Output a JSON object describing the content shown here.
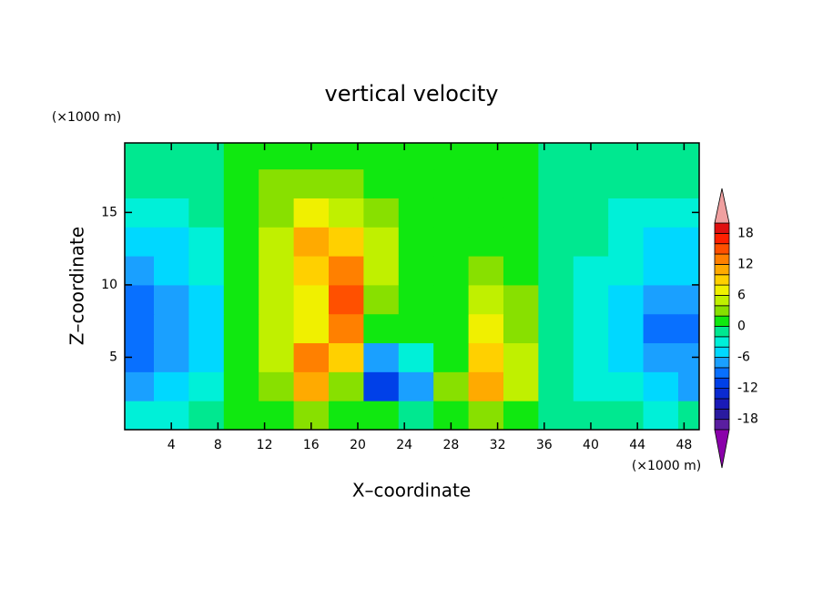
{
  "chart_data": {
    "type": "contour",
    "title": "vertical velocity",
    "x_label": "X–coordinate",
    "y_label": "Z–coordinate",
    "x_unit": "(×1000 m)",
    "y_unit": "(×1000 m)",
    "xlim": [
      0,
      49.3
    ],
    "ylim": [
      0,
      19.8
    ],
    "xticks": [
      4,
      8,
      12,
      16,
      20,
      24,
      28,
      32,
      36,
      40,
      44,
      48
    ],
    "yticks": [
      5,
      10,
      15
    ],
    "x": [
      1,
      4,
      7,
      10,
      13,
      16,
      19,
      22,
      25,
      28,
      31,
      34,
      37,
      40,
      43,
      46,
      49
    ],
    "y": [
      1,
      3,
      5,
      7,
      9,
      11,
      13,
      15,
      17,
      19
    ],
    "z": [
      [
        -4,
        -4,
        -2,
        1,
        1,
        3,
        1,
        0,
        -2,
        1,
        3,
        1,
        -1,
        -2,
        -2,
        -4,
        -2
      ],
      [
        -8,
        -6,
        -4,
        0.5,
        3,
        11,
        3,
        -12,
        -7,
        3,
        11,
        4,
        -1,
        -4,
        -4,
        -6,
        -8
      ],
      [
        -10,
        -8,
        -5,
        1,
        4,
        13,
        9,
        -8,
        -3,
        1,
        9,
        4,
        -1,
        -4,
        -6,
        -7,
        -8
      ],
      [
        -10,
        -8,
        -6,
        1,
        5,
        7,
        12,
        1,
        1,
        1,
        7,
        3,
        -1,
        -4,
        -6,
        -9,
        -10
      ],
      [
        -10,
        -8,
        -5,
        1,
        5,
        7,
        15,
        3,
        1,
        1,
        5,
        3,
        -1,
        -3,
        -6,
        -8,
        -8
      ],
      [
        -8,
        -6,
        -4,
        1,
        5,
        9,
        13,
        4,
        1,
        1,
        3,
        1,
        -1,
        -3,
        -4,
        -6,
        -6
      ],
      [
        -6,
        -5,
        -3,
        0.5,
        4,
        11,
        9,
        5,
        1,
        1,
        1,
        1,
        -1,
        -2,
        -3,
        -5,
        -6
      ],
      [
        -4,
        -4,
        -2,
        1,
        3,
        7,
        5,
        3,
        1,
        1,
        1,
        1,
        -1,
        -2,
        -3,
        -4,
        -4
      ],
      [
        -2,
        -2,
        -1,
        1,
        3,
        3,
        3,
        1,
        1,
        1,
        1,
        1,
        -1,
        -2,
        -2,
        -2,
        -2
      ],
      [
        -1,
        -1,
        -1,
        1,
        1,
        1,
        1,
        1,
        1,
        1,
        1,
        1,
        -1,
        -1,
        -1,
        -1,
        -1
      ]
    ],
    "levels": [
      -20,
      -18,
      -16,
      -14,
      -12,
      -10,
      -8,
      -6,
      -4,
      -2,
      0,
      2,
      4,
      6,
      8,
      10,
      12,
      14,
      16,
      18,
      20
    ],
    "colors": [
      "#8a00aa",
      "#5a1ea0",
      "#2a1aa0",
      "#1a1ab8",
      "#0a2ad0",
      "#0040e8",
      "#0870ff",
      "#1aa0ff",
      "#00d8ff",
      "#00f0d8",
      "#00e890",
      "#10e810",
      "#88e000",
      "#c0f000",
      "#f0f000",
      "#ffd000",
      "#ffaa00",
      "#ff8000",
      "#ff5000",
      "#ff2000",
      "#e01010",
      "#f0a0a0"
    ],
    "colorbar_ticks": [
      18,
      12,
      6,
      0,
      -6,
      -12,
      -18
    ]
  }
}
